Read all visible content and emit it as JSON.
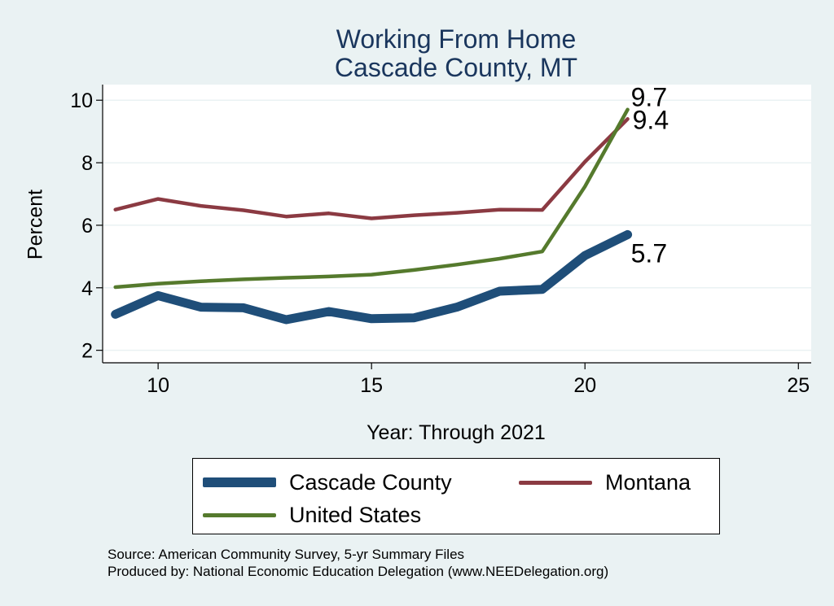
{
  "chart_data": {
    "type": "line",
    "title": [
      "Working From Home",
      "Cascade County, MT"
    ],
    "xlabel": "Year: Through 2021",
    "ylabel": "Percent",
    "xlim": [
      8.7,
      25.3
    ],
    "ylim": [
      1.6,
      10.5
    ],
    "xticks": [
      10,
      15,
      20,
      25
    ],
    "yticks": [
      2,
      4,
      6,
      8,
      10
    ],
    "grid": "horizontal",
    "legend_placement": "bottom",
    "x": [
      9,
      10,
      11,
      12,
      13,
      14,
      15,
      16,
      17,
      18,
      19,
      20,
      21
    ],
    "series": [
      {
        "name": "Cascade County",
        "color": "#1f4e79",
        "values": [
          3.15,
          3.75,
          3.38,
          3.36,
          2.98,
          3.24,
          3.01,
          3.04,
          3.38,
          3.89,
          3.95,
          5.03,
          5.7
        ],
        "end_label": "5.7"
      },
      {
        "name": "Montana",
        "color": "#8b3a42",
        "values": [
          6.5,
          6.84,
          6.62,
          6.48,
          6.28,
          6.38,
          6.22,
          6.32,
          6.4,
          6.5,
          6.49,
          8.03,
          9.4
        ],
        "end_label": "9.4"
      },
      {
        "name": "United States",
        "color": "#557a2d",
        "values": [
          4.02,
          4.13,
          4.21,
          4.27,
          4.32,
          4.36,
          4.42,
          4.57,
          4.74,
          4.93,
          5.16,
          7.24,
          9.7
        ],
        "end_label": "9.7"
      }
    ]
  },
  "footer": {
    "source": "Source: American Community Survey, 5-yr Summary Files",
    "producer": "Produced by: National Economic Education Delegation (www.NEEDelegation.org)"
  }
}
